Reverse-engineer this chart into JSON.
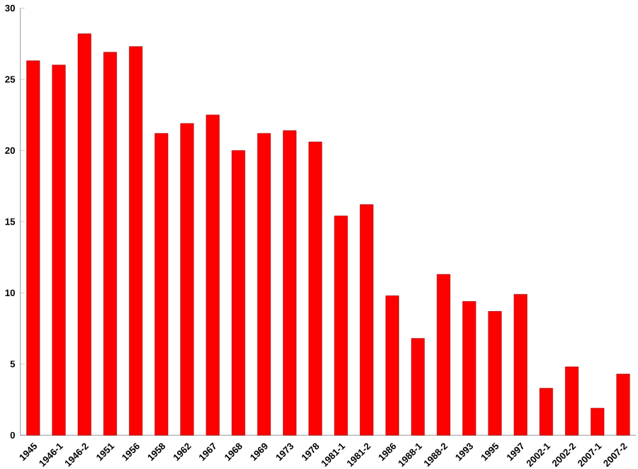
{
  "chart_data": {
    "type": "bar",
    "categories": [
      "1945",
      "1946-1",
      "1946-2",
      "1951",
      "1956",
      "1958",
      "1962",
      "1967",
      "1968",
      "1969",
      "1973",
      "1978",
      "1981-1",
      "1981-2",
      "1986",
      "1988-1",
      "1988-2",
      "1993",
      "1995",
      "1997",
      "2002-1",
      "2002-2",
      "2007-1",
      "2007-2"
    ],
    "values": [
      26.3,
      26.0,
      28.2,
      26.9,
      27.3,
      21.2,
      21.9,
      22.5,
      20.0,
      21.2,
      21.4,
      20.6,
      15.4,
      16.2,
      9.8,
      6.8,
      11.3,
      9.4,
      8.7,
      9.9,
      3.3,
      4.8,
      1.9,
      4.3
    ],
    "color": "#ff0000",
    "ylim": [
      0,
      30
    ],
    "yticks": [
      0,
      5,
      10,
      15,
      20,
      25,
      30
    ]
  }
}
